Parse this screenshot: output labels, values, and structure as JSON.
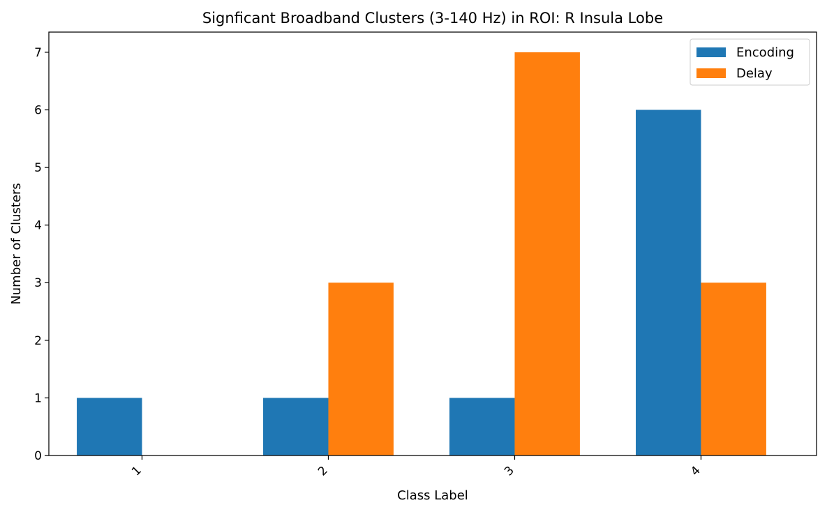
{
  "chart_data": {
    "type": "bar",
    "title": "Signficant Broadband Clusters (3-140 Hz) in ROI: R Insula Lobe",
    "xlabel": "Class Label",
    "ylabel": "Number of Clusters",
    "categories": [
      "1",
      "2",
      "3",
      "4"
    ],
    "series": [
      {
        "name": "Encoding",
        "values": [
          1,
          1,
          1,
          6
        ],
        "color": "#1f77b4"
      },
      {
        "name": "Delay",
        "values": [
          0,
          3,
          7,
          3
        ],
        "color": "#ff7f0e"
      }
    ],
    "ylim": [
      0,
      7.35
    ],
    "yticks": [
      0,
      1,
      2,
      3,
      4,
      5,
      6,
      7
    ],
    "grid": false,
    "legend_position": "top-right",
    "xtick_rotation_deg": -45
  }
}
